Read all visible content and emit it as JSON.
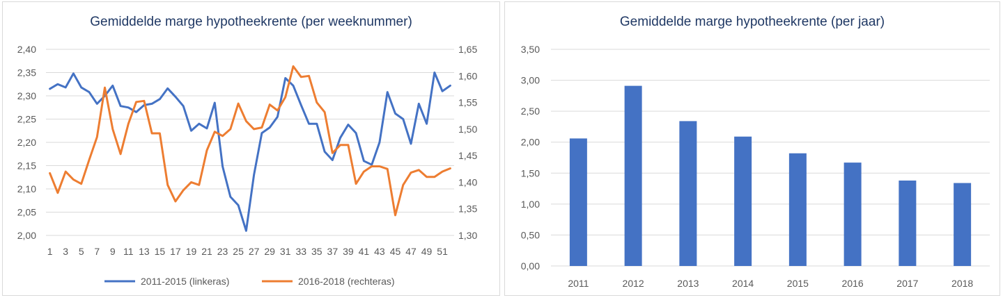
{
  "chart_data": [
    {
      "type": "line",
      "title": "Gemiddelde marge hypotheekrente (per weeknummer)",
      "xlabel": "",
      "ylabel": "",
      "x": [
        1,
        2,
        3,
        4,
        5,
        6,
        7,
        8,
        9,
        10,
        11,
        12,
        13,
        14,
        15,
        16,
        17,
        18,
        19,
        20,
        21,
        22,
        23,
        24,
        25,
        26,
        27,
        28,
        29,
        30,
        31,
        32,
        33,
        34,
        35,
        36,
        37,
        38,
        39,
        40,
        41,
        42,
        43,
        44,
        45,
        46,
        47,
        48,
        49,
        50,
        51,
        52
      ],
      "x_tick_labels": [
        "1",
        "3",
        "5",
        "7",
        "9",
        "11",
        "13",
        "15",
        "17",
        "19",
        "21",
        "23",
        "25",
        "27",
        "29",
        "31",
        "33",
        "35",
        "37",
        "39",
        "41",
        "43",
        "45",
        "47",
        "49",
        "51"
      ],
      "ylim_left": [
        2.0,
        2.4
      ],
      "y_ticks_left": [
        "2,00",
        "2,05",
        "2,10",
        "2,15",
        "2,20",
        "2,25",
        "2,30",
        "2,35",
        "2,40"
      ],
      "ylim_right": [
        1.3,
        1.65
      ],
      "y_ticks_right": [
        "1,30",
        "1,35",
        "1,40",
        "1,45",
        "1,50",
        "1,55",
        "1,60",
        "1,65"
      ],
      "grid": true,
      "legend_position": "bottom",
      "series": [
        {
          "name": "2011-2015 (linkeras)",
          "axis": "left",
          "color": "#4472c4",
          "values": [
            2.315,
            2.325,
            2.318,
            2.348,
            2.318,
            2.308,
            2.283,
            2.3,
            2.322,
            2.278,
            2.275,
            2.265,
            2.28,
            2.283,
            2.293,
            2.316,
            2.298,
            2.278,
            2.225,
            2.24,
            2.23,
            2.285,
            2.148,
            2.083,
            2.065,
            2.01,
            2.13,
            2.22,
            2.232,
            2.255,
            2.338,
            2.322,
            2.28,
            2.24,
            2.24,
            2.18,
            2.162,
            2.21,
            2.238,
            2.22,
            2.16,
            2.152,
            2.2,
            2.308,
            2.262,
            2.25,
            2.197,
            2.283,
            2.24,
            2.35,
            2.31,
            2.322
          ]
        },
        {
          "name": "2016-2018 (rechteras)",
          "axis": "right",
          "color": "#ed7d31",
          "values": [
            1.417,
            1.38,
            1.42,
            1.405,
            1.397,
            1.442,
            1.485,
            1.578,
            1.5,
            1.453,
            1.51,
            1.551,
            1.553,
            1.492,
            1.492,
            1.395,
            1.364,
            1.385,
            1.4,
            1.395,
            1.46,
            1.495,
            1.487,
            1.5,
            1.548,
            1.515,
            1.5,
            1.503,
            1.546,
            1.535,
            1.56,
            1.618,
            1.598,
            1.6,
            1.55,
            1.532,
            1.455,
            1.47,
            1.47,
            1.397,
            1.42,
            1.43,
            1.43,
            1.425,
            1.338,
            1.395,
            1.418,
            1.423,
            1.41,
            1.41,
            1.42,
            1.426
          ]
        }
      ]
    },
    {
      "type": "bar",
      "title": "Gemiddelde marge hypotheekrente  (per jaar)",
      "xlabel": "",
      "ylabel": "",
      "categories": [
        "2011",
        "2012",
        "2013",
        "2014",
        "2015",
        "2016",
        "2017",
        "2018"
      ],
      "values": [
        2.06,
        2.91,
        2.34,
        2.09,
        1.82,
        1.67,
        1.38,
        1.34
      ],
      "ylim": [
        0,
        3.5
      ],
      "y_ticks": [
        "0,00",
        "0,50",
        "1,00",
        "1,50",
        "2,00",
        "2,50",
        "3,00",
        "3,50"
      ],
      "grid": true,
      "color": "#4472c4"
    }
  ]
}
